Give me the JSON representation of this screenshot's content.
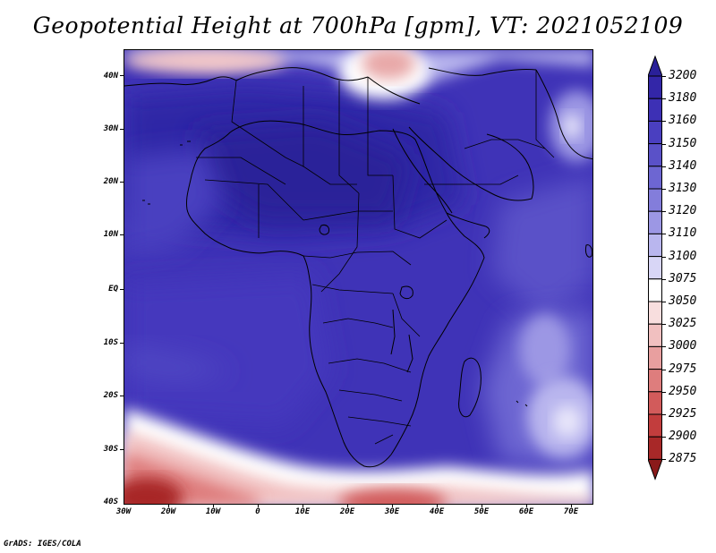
{
  "title": "Geopotential Height at 700hPa [gpm], VT: 2021052109",
  "credit": "GrADS: IGES/COLA",
  "lat_labels": [
    "40N",
    "30N",
    "20N",
    "10N",
    "EQ",
    "10S",
    "20S",
    "30S",
    "40S"
  ],
  "lon_labels": [
    "30W",
    "20W",
    "10W",
    "0",
    "10E",
    "20E",
    "30E",
    "40E",
    "50E",
    "60E",
    "70E"
  ],
  "colorbar": {
    "levels": [
      "3200",
      "3180",
      "3160",
      "3150",
      "3140",
      "3130",
      "3120",
      "3110",
      "3100",
      "3075",
      "3050",
      "3025",
      "3000",
      "2975",
      "2950",
      "2925",
      "2900",
      "2875"
    ],
    "colors": [
      "#2a2099",
      "#3326a8",
      "#3d30b5",
      "#4a3fc0",
      "#5a51c8",
      "#6d66d2",
      "#837ddb",
      "#9c97e4",
      "#b9b6ee",
      "#d8d6f6",
      "#ffffff",
      "#f8dede",
      "#f1c0c0",
      "#e89f9f",
      "#de7d7d",
      "#d25b5b",
      "#c23d3d",
      "#a82828",
      "#8a1a1a"
    ]
  }
}
